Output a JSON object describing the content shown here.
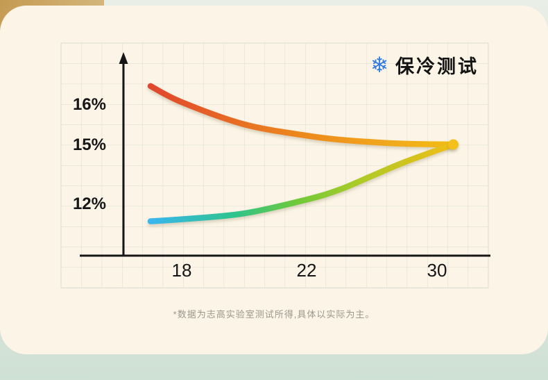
{
  "header": {
    "icon": "snowflake-icon",
    "icon_char": "❄",
    "title": "保冷测试"
  },
  "footnote": "*数据为志高实验室测试所得,具体以实际为主。",
  "colors": {
    "card_bg": "#fcf5e7",
    "page_bg_bottom": "#cfe0d4",
    "corner_tan": "#c49a52",
    "grid_line": "#dbdad0",
    "axis": "#161616",
    "snowflake_blue": "#2f7be0",
    "footnote_text": "#9b978c",
    "convergence_dot": "#f4c01a"
  },
  "chart_data": {
    "type": "line",
    "title": "保冷测试",
    "xlabel": "",
    "ylabel": "",
    "grid": true,
    "x_ticks": [
      {
        "value": 18,
        "label": "18"
      },
      {
        "value": 22,
        "label": "22"
      },
      {
        "value": 30,
        "label": "30"
      }
    ],
    "y_ticks": [
      {
        "value": 16,
        "label": "16%"
      },
      {
        "value": 15,
        "label": "15%"
      },
      {
        "value": 12,
        "label": "12%"
      }
    ],
    "series": [
      {
        "name": "upper-red-to-gold",
        "points": [
          [
            17,
            16.45
          ],
          [
            18,
            16.05
          ],
          [
            20,
            15.5
          ],
          [
            22,
            15.22
          ],
          [
            24,
            15.12
          ],
          [
            26,
            15.06
          ],
          [
            28,
            15.02
          ],
          [
            31,
            15.0
          ]
        ],
        "gradient": [
          {
            "offset": 0,
            "color": "#e0462e"
          },
          {
            "offset": 0.38,
            "color": "#ea7a20"
          },
          {
            "offset": 0.7,
            "color": "#f0a01d"
          },
          {
            "offset": 1,
            "color": "#f2bd17"
          }
        ]
      },
      {
        "name": "lower-cyan-to-gold",
        "points": [
          [
            17,
            11.1
          ],
          [
            18,
            11.2
          ],
          [
            20,
            11.5
          ],
          [
            22,
            12.2
          ],
          [
            24,
            12.7
          ],
          [
            26,
            13.4
          ],
          [
            28,
            14.1
          ],
          [
            31,
            15.0
          ]
        ],
        "gradient": [
          {
            "offset": 0,
            "color": "#38b6ee"
          },
          {
            "offset": 0.28,
            "color": "#2ec48b"
          },
          {
            "offset": 0.48,
            "color": "#6ec93a"
          },
          {
            "offset": 0.68,
            "color": "#aacb28"
          },
          {
            "offset": 1,
            "color": "#f2bd17"
          }
        ]
      }
    ],
    "convergence_point": [
      31,
      15.0
    ]
  }
}
